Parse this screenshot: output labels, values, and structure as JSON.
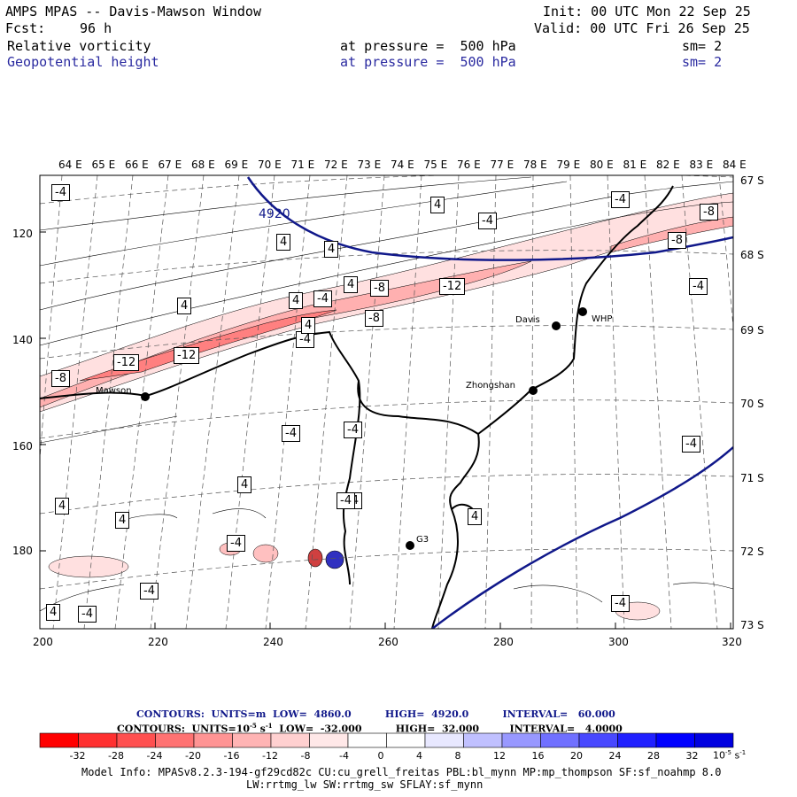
{
  "header": {
    "title": "AMPS MPAS -- Davis-Mawson Window",
    "forecast_label": "Fcst:",
    "forecast_value": "96 h",
    "init": "Init: 00 UTC Mon 22 Sep 25",
    "valid": "Valid: 00 UTC Fri 26 Sep 25",
    "field1": {
      "name": "Relative vorticity",
      "pressure": "at pressure =  500 hPa",
      "sm": "sm= 2"
    },
    "field2": {
      "name": "Geopotential height",
      "pressure": "at pressure =  500 hPa",
      "sm": "sm= 2"
    }
  },
  "map": {
    "top_lon_labels": [
      "64 E",
      "65 E",
      "66 E",
      "67 E",
      "68 E",
      "69 E",
      "70 E",
      "71 E",
      "72 E",
      "73 E",
      "74 E",
      "75 E",
      "76 E",
      "77 E",
      "78 E",
      "79 E",
      "80 E",
      "81 E",
      "82 E",
      "83 E",
      "84 E"
    ],
    "right_lat_labels": [
      "67 S",
      "68 S",
      "69 S",
      "70 S",
      "71 S",
      "72 S",
      "73 S"
    ],
    "left_axis": [
      "120",
      "140",
      "160",
      "180"
    ],
    "bottom_axis": [
      "200",
      "220",
      "240",
      "260",
      "280",
      "300",
      "320"
    ],
    "stations": [
      {
        "name": "Mawson"
      },
      {
        "name": "Davis"
      },
      {
        "name": "WHP"
      },
      {
        "name": "Zhongshan"
      },
      {
        "name": "G3"
      }
    ],
    "height_contour_label": "4920",
    "vorticity_labels": [
      "-4",
      "4",
      "-4",
      "4",
      "-8",
      "4",
      "-8",
      "-4",
      "4",
      "4",
      "4",
      "-4",
      "-8",
      "-12",
      "-4",
      "-8",
      "-4",
      "-12",
      "-12",
      "-8",
      "-4",
      "-4",
      "4",
      "-4",
      "4",
      "4",
      "-4",
      "4",
      "-4",
      "-4",
      "4",
      "-4",
      "4",
      "-4",
      "-4"
    ]
  },
  "contour_info": {
    "line1": "CONTOURS:  UNITS=m  LOW=  4860.0          HIGH=  4920.0          INTERVAL=   60.000",
    "line2_prefix": "CONTOURS:  UNITS=10",
    "line2_exp": "-5",
    "line2_suffix": " s",
    "line2_exp2": "-1",
    "line2_rest": "  LOW=  -32.000          HIGH=  32.000         INTERVAL=   4.0000"
  },
  "colorbar": {
    "ticks": [
      "-32",
      "-28",
      "-24",
      "-20",
      "-16",
      "-12",
      "-8",
      "-4",
      "0",
      "4",
      "8",
      "12",
      "16",
      "20",
      "24",
      "28",
      "32"
    ],
    "unit": "10",
    "unit_exp": "-5",
    "unit_suffix": " s",
    "unit_exp2": "-1",
    "colors": [
      "#ff0000",
      "#ff3030",
      "#ff5050",
      "#ff7272",
      "#ff9494",
      "#ffb4b4",
      "#ffd0d0",
      "#ffe8e8",
      "#ffffff",
      "#ffffff",
      "#e8e8ff",
      "#c0c0ff",
      "#9898ff",
      "#7070ff",
      "#4848ff",
      "#2020ff",
      "#0000ff",
      "#0000e0"
    ]
  },
  "footer": {
    "line1": "Model Info: MPASv8.2.3-194-gf29cd82c CU:cu_grell_freitas PBL:bl_mynn MP:mp_thompson SF:sf_noahmp 8.0",
    "line2": "LW:rrtmg_lw SW:rrtmg_sw SFLAY:sf_mynn"
  }
}
